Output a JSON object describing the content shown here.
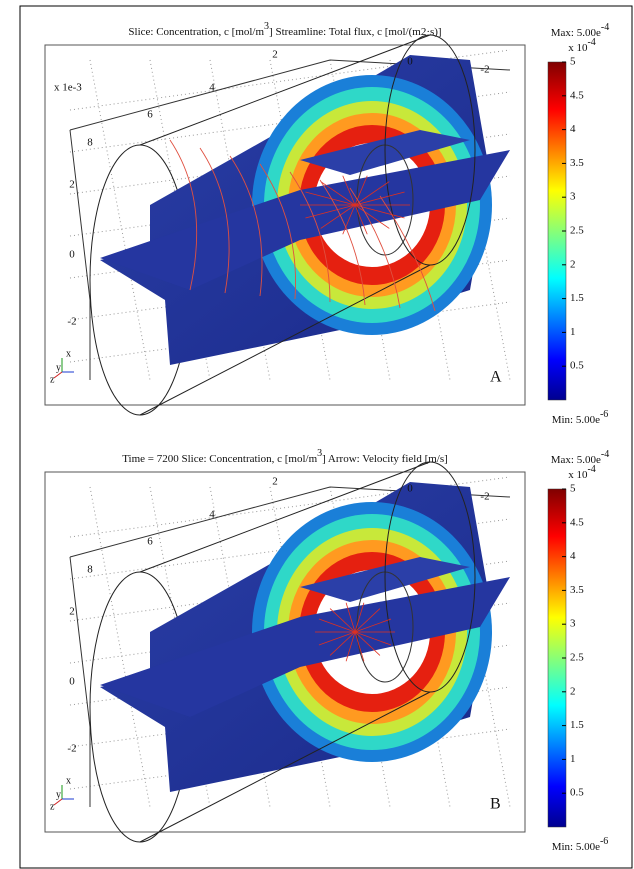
{
  "panels": [
    {
      "label": "A",
      "title": {
        "before": "Slice: Concentration, c [mol/m",
        "sup": "3",
        "after": "] Streamline: Total flux, c [mol/(m2·s)]"
      },
      "axis_ticks": {
        "top": [
          "2",
          "0",
          "-2"
        ],
        "depth": [
          "8",
          "6",
          "4"
        ],
        "left": [
          "2",
          "0",
          "-2"
        ]
      },
      "axis_scale": "x 1e-3",
      "triad": [
        "x",
        "y",
        "z"
      ],
      "colorbar": {
        "max": "Max: 5.00e",
        "max_exp": "-4",
        "unit": "x 10",
        "unit_exp": "-4",
        "min": "Min: 5.00e",
        "min_exp": "-6",
        "ticks": [
          5,
          4.5,
          4,
          3.5,
          3,
          2.5,
          2,
          1.5,
          1,
          0.5
        ]
      }
    },
    {
      "label": "B",
      "title": {
        "before": "Time = 7200 Slice: Concentration, c [mol/m",
        "sup": "3",
        "after": "] Arrow: Velocity field [m/s]"
      },
      "axis_ticks": {
        "top": [
          "2",
          "0",
          "-2"
        ],
        "depth": [
          "8",
          "6",
          "4"
        ],
        "left": [
          "2",
          "0",
          "-2"
        ]
      },
      "triad": [
        "x",
        "y",
        "z"
      ],
      "colorbar": {
        "max": "Max: 5.00e",
        "max_exp": "-4",
        "unit": "x 10",
        "unit_exp": "-4",
        "min": "Min: 5.00e",
        "min_exp": "-6",
        "ticks": [
          5,
          4.5,
          4,
          3.5,
          3,
          2.5,
          2,
          1.5,
          1,
          0.5
        ]
      }
    }
  ]
}
